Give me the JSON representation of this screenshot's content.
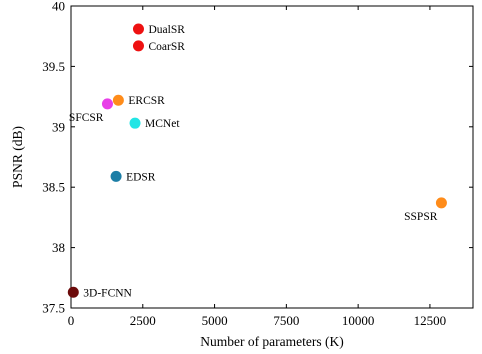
{
  "chart_data": {
    "type": "scatter",
    "xlabel": "Number of parameters (K)",
    "ylabel": "PSNR (dB)",
    "xlim": [
      0,
      14000
    ],
    "ylim": [
      37.5,
      40
    ],
    "xticks": [
      0,
      2500,
      5000,
      7500,
      10000,
      12500
    ],
    "xtick_labels": [
      "0",
      "2500",
      "5000",
      "7500",
      "10000",
      "12500"
    ],
    "yticks": [
      37.5,
      38,
      38.5,
      39,
      39.5,
      40
    ],
    "ytick_labels": [
      "37.5",
      "38",
      "38.5",
      "39",
      "39.5",
      "40"
    ],
    "grid": false,
    "points": [
      {
        "label": "DualSR",
        "x": 2350,
        "y": 39.81,
        "color": "#ee1111",
        "label_pos": "right"
      },
      {
        "label": "CoarSR",
        "x": 2350,
        "y": 39.67,
        "color": "#ee1111",
        "label_pos": "right"
      },
      {
        "label": "ERCSR",
        "x": 1650,
        "y": 39.22,
        "color": "#ff8c1a",
        "label_pos": "right"
      },
      {
        "label": "SFCSR",
        "x": 1270,
        "y": 39.19,
        "color": "#e83ee8",
        "label_pos": "below-left"
      },
      {
        "label": "MCNet",
        "x": 2230,
        "y": 39.03,
        "color": "#22e5e5",
        "label_pos": "right"
      },
      {
        "label": "EDSR",
        "x": 1570,
        "y": 38.59,
        "color": "#1c7ea6",
        "label_pos": "right"
      },
      {
        "label": "SSPSR",
        "x": 12900,
        "y": 38.37,
        "color": "#ff8c1a",
        "label_pos": "below-left"
      },
      {
        "label": "3D-FCNN",
        "x": 80,
        "y": 37.63,
        "color": "#6b0a0a",
        "label_pos": "right"
      }
    ]
  }
}
